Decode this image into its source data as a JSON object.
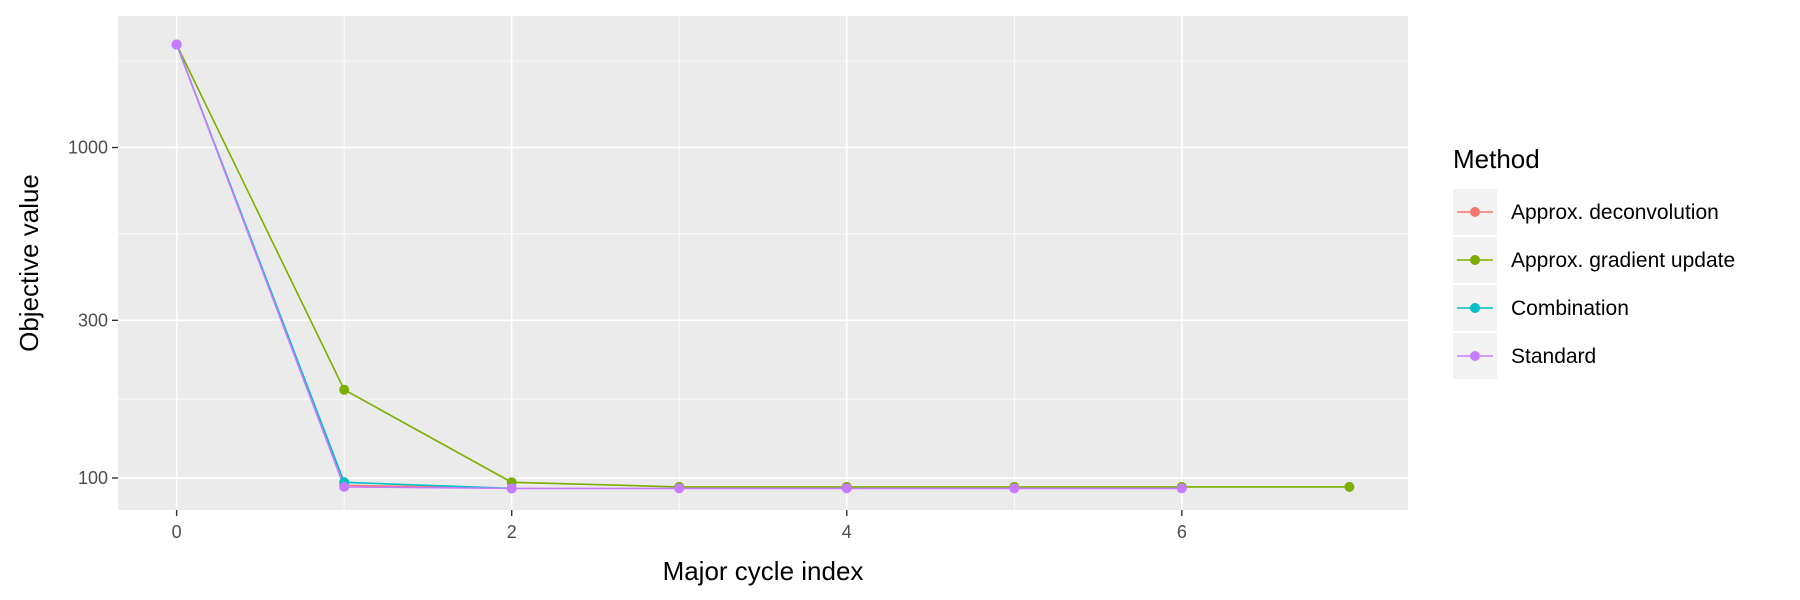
{
  "chart_data": {
    "type": "line",
    "xlabel": "Major cycle index",
    "ylabel": "Objective value",
    "y_scale": "log",
    "xlim": [
      -0.35,
      7.35
    ],
    "ylim": [
      80,
      2500
    ],
    "x_ticks": [
      0,
      2,
      4,
      6
    ],
    "x_tick_labels": [
      "0",
      "2",
      "4",
      "6"
    ],
    "y_ticks": [
      100,
      300,
      1000
    ],
    "y_tick_labels": [
      "100",
      "300",
      "1000"
    ],
    "grid": true,
    "legend_position": "right",
    "legend_title": "Method",
    "series": [
      {
        "name": "Approx. deconvolution",
        "color": "#F8766D",
        "points": [
          [
            0,
            2050
          ],
          [
            1,
            95
          ],
          [
            2,
            93
          ]
        ]
      },
      {
        "name": "Approx. gradient update",
        "color": "#7CAE00",
        "points": [
          [
            0,
            2050
          ],
          [
            1,
            185
          ],
          [
            2,
            97
          ],
          [
            3,
            94
          ],
          [
            4,
            94
          ],
          [
            5,
            94
          ],
          [
            6,
            94
          ],
          [
            7,
            94
          ]
        ]
      },
      {
        "name": "Combination",
        "color": "#00BFC4",
        "points": [
          [
            0,
            2050
          ],
          [
            1,
            97
          ],
          [
            2,
            93
          ]
        ]
      },
      {
        "name": "Standard",
        "color": "#C77CFF",
        "points": [
          [
            0,
            2050
          ],
          [
            1,
            94
          ],
          [
            2,
            93
          ],
          [
            3,
            93
          ],
          [
            4,
            93
          ],
          [
            5,
            93
          ],
          [
            6,
            93
          ]
        ]
      }
    ]
  }
}
